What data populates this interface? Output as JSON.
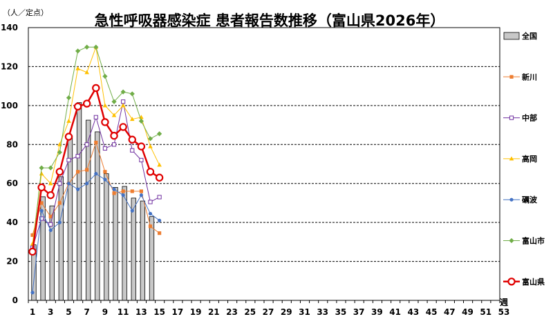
{
  "chart_data": {
    "type": "bar+line",
    "title": "急性呼吸器感染症 患者報告数推移（富山県2026年）",
    "ylabel": "（人／定点）",
    "xlabel": "週",
    "ylim": [
      0,
      140
    ],
    "yticks": [
      0,
      20,
      40,
      60,
      80,
      100,
      120,
      140
    ],
    "xlim": [
      1,
      53
    ],
    "xticks": [
      1,
      3,
      5,
      7,
      9,
      11,
      13,
      15,
      17,
      19,
      21,
      23,
      25,
      27,
      29,
      31,
      33,
      35,
      37,
      39,
      41,
      43,
      45,
      47,
      49,
      51,
      53
    ],
    "grid": true,
    "legend": "right",
    "bars": {
      "name": "全国",
      "x": [
        1,
        2,
        3,
        4,
        5,
        6,
        7,
        8,
        9,
        10,
        11,
        12,
        13,
        14
      ],
      "values": [
        28.5,
        53.2,
        48.5,
        63.5,
        84.5,
        101.5,
        92.5,
        86.5,
        65,
        58,
        58.5,
        52.5,
        51,
        43
      ]
    },
    "series": [
      {
        "name": "新川",
        "color": "#ED7D31",
        "marker": "square",
        "x": [
          1,
          2,
          3,
          4,
          5,
          6,
          7,
          8,
          9,
          10,
          11,
          12,
          13,
          14,
          15
        ],
        "values": [
          33.5,
          50,
          43,
          50,
          60,
          66,
          67,
          81,
          66,
          55,
          56,
          56,
          56,
          38,
          34.5
        ]
      },
      {
        "name": "中部",
        "color": "#7030A0",
        "marker": "square-open",
        "x": [
          1,
          2,
          3,
          4,
          5,
          6,
          7,
          8,
          9,
          10,
          11,
          12,
          13,
          14,
          15
        ],
        "values": [
          27,
          42,
          39,
          60,
          72,
          74,
          80,
          94,
          78,
          80,
          102,
          77,
          72,
          50.5,
          53
        ]
      },
      {
        "name": "高岡",
        "color": "#FFC000",
        "marker": "triangle",
        "x": [
          1,
          2,
          3,
          4,
          5,
          6,
          7,
          8,
          9,
          10,
          11,
          12,
          13,
          14,
          15
        ],
        "values": [
          29,
          65,
          60,
          80,
          92,
          119,
          117,
          130,
          100,
          95,
          100,
          93,
          94,
          79,
          69.5
        ]
      },
      {
        "name": "礪波",
        "color": "#4472C4",
        "marker": "circle-small",
        "x": [
          1,
          2,
          3,
          4,
          5,
          6,
          7,
          8,
          9,
          10,
          11,
          12,
          13,
          14,
          15
        ],
        "values": [
          4,
          46,
          36,
          40,
          60,
          57,
          60,
          65,
          62,
          57,
          54,
          46,
          54,
          44.5,
          41
        ]
      },
      {
        "name": "富山市",
        "color": "#70AD47",
        "marker": "diamond",
        "x": [
          1,
          2,
          3,
          4,
          5,
          6,
          7,
          8,
          9,
          10,
          11,
          12,
          13,
          14,
          15
        ],
        "values": [
          26,
          68,
          68,
          76,
          104,
          128,
          130,
          130,
          115,
          102,
          107,
          106,
          92,
          83,
          85.5
        ]
      },
      {
        "name": "富山県",
        "color": "#E00000",
        "marker": "circle-open-large",
        "x": [
          1,
          2,
          3,
          4,
          5,
          6,
          7,
          8,
          9,
          10,
          11,
          12,
          13,
          14,
          15
        ],
        "values": [
          25,
          58,
          54,
          66,
          84,
          99.5,
          101,
          109,
          91.5,
          84.5,
          89,
          82.5,
          79,
          66,
          63
        ]
      }
    ]
  }
}
